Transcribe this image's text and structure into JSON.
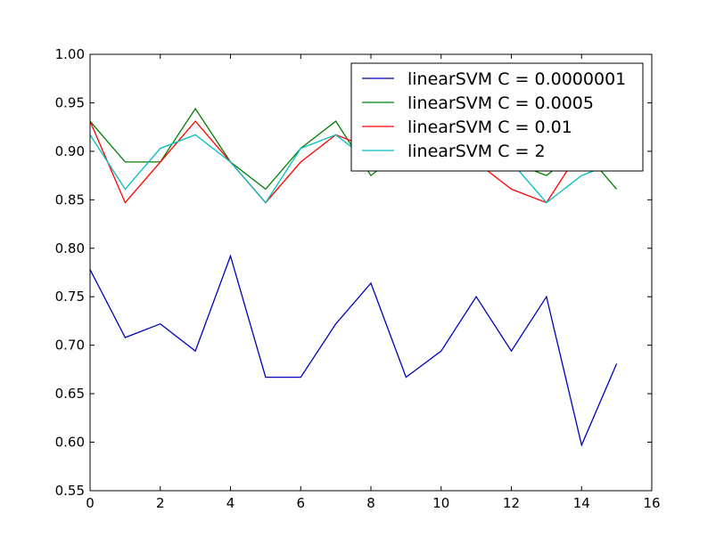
{
  "chart_data": {
    "type": "line",
    "title": "",
    "xlabel": "",
    "ylabel": "",
    "xlim": [
      0,
      16
    ],
    "ylim": [
      0.55,
      1.0
    ],
    "x_ticks": [
      0,
      2,
      4,
      6,
      8,
      10,
      12,
      14,
      16
    ],
    "x_tick_labels": [
      "0",
      "2",
      "4",
      "6",
      "8",
      "10",
      "12",
      "14",
      "16"
    ],
    "y_ticks": [
      0.55,
      0.6,
      0.65,
      0.7,
      0.75,
      0.8,
      0.85,
      0.9,
      0.95,
      1.0
    ],
    "y_tick_labels": [
      "0.55",
      "0.60",
      "0.65",
      "0.70",
      "0.75",
      "0.80",
      "0.85",
      "0.90",
      "0.95",
      "1.00"
    ],
    "grid": false,
    "legend_position": "top-right",
    "x": [
      0,
      1,
      2,
      3,
      4,
      5,
      6,
      7,
      8,
      9,
      10,
      11,
      12,
      13,
      14,
      15
    ],
    "series": [
      {
        "name": "linearSVM C = 0.0000001",
        "color": "#0000bf",
        "values": [
          0.778,
          0.708,
          0.722,
          0.694,
          0.792,
          0.667,
          0.667,
          0.722,
          0.764,
          0.667,
          0.694,
          0.75,
          0.694,
          0.75,
          0.597,
          0.681
        ]
      },
      {
        "name": "linearSVM C = 0.0005",
        "color": "#007f00",
        "values": [
          0.931,
          0.889,
          0.889,
          0.944,
          0.889,
          0.861,
          0.903,
          0.931,
          0.875,
          0.903,
          0.903,
          0.889,
          0.889,
          0.875,
          0.903,
          0.861
        ]
      },
      {
        "name": "linearSVM C = 0.01",
        "color": "#ff0000",
        "values": [
          0.931,
          0.847,
          0.889,
          0.931,
          0.889,
          0.847,
          0.889,
          0.917,
          0.903,
          0.889,
          0.903,
          0.889,
          0.861,
          0.847,
          0.903,
          0.903
        ]
      },
      {
        "name": "linearSVM C = 2",
        "color": "#00bfbf",
        "values": [
          0.917,
          0.861,
          0.903,
          0.917,
          0.889,
          0.847,
          0.903,
          0.917,
          0.889,
          0.889,
          0.903,
          0.903,
          0.889,
          0.847,
          0.875,
          0.889
        ]
      }
    ]
  }
}
